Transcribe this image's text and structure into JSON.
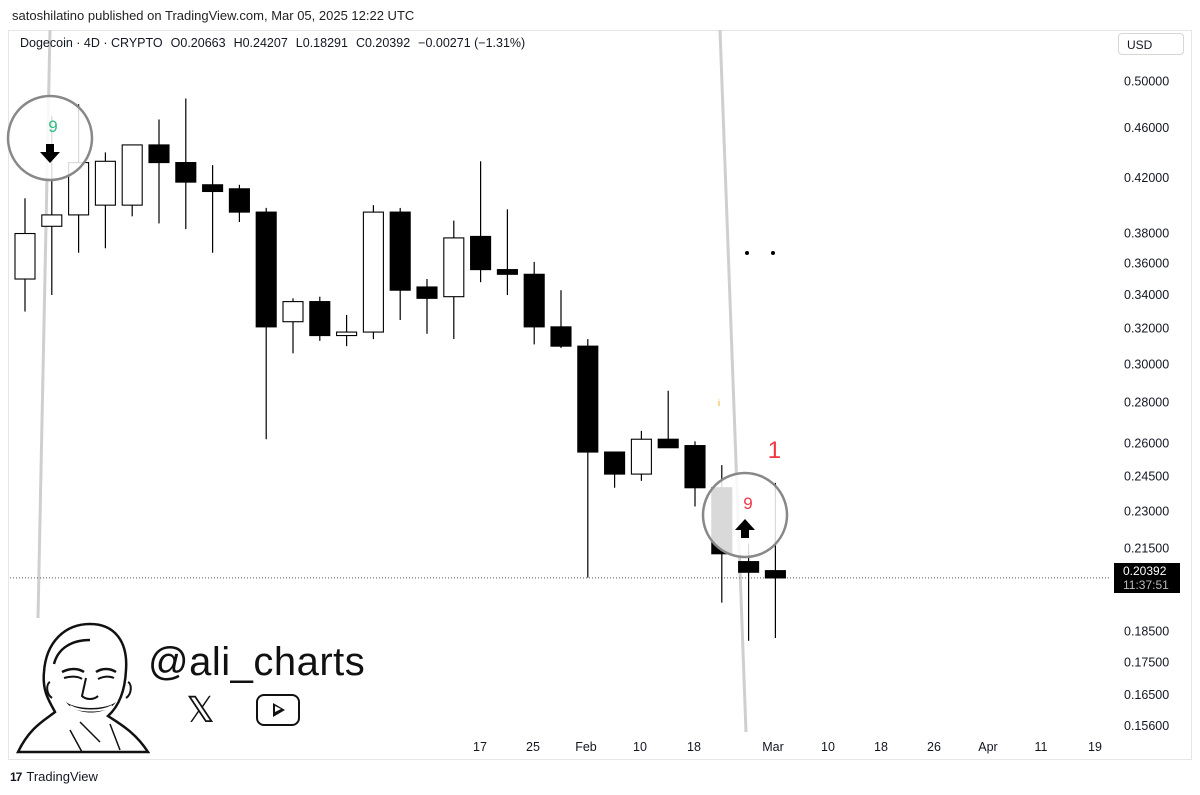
{
  "header": {
    "published": "satoshilatino published on TradingView.com, Mar 05, 2025 12:22 UTC"
  },
  "legend": {
    "symbol": "Dogecoin · 4D · CRYPTO",
    "open": "O0.20663",
    "high": "H0.24207",
    "low": "L0.18291",
    "close": "C0.20392",
    "change": "−0.00271 (−1.31%)"
  },
  "currency_button": "USD",
  "last_price": {
    "value": "0.20392",
    "countdown": "11:37:51"
  },
  "watermark": {
    "handle": "@ali_charts",
    "x_logo": "𝕏"
  },
  "footer": {
    "brand": "TradingView",
    "logo_icon": "tradingview-logo-icon"
  },
  "colors": {
    "up_body": "#ffffff",
    "down_body": "#000000",
    "wick": "#000000",
    "signal_green": "#2ebd85",
    "signal_red": "#f23645",
    "trendline": "#cfcfcf"
  },
  "chart_data": {
    "type": "candlestick",
    "symbol": "Dogecoin",
    "interval": "4D",
    "y_axis": {
      "scale": "log",
      "ticks": [
        "0.50000",
        "0.46000",
        "0.42000",
        "0.38000",
        "0.36000",
        "0.34000",
        "0.32000",
        "0.30000",
        "0.28000",
        "0.26000",
        "0.24500",
        "0.23000",
        "0.21500",
        "0.18500",
        "0.17500",
        "0.16500",
        "0.15600"
      ],
      "ylim": [
        0.1535,
        0.52
      ]
    },
    "x_axis": {
      "tick_labels": [
        "17",
        "25",
        "Feb",
        "10",
        "18",
        "Mar",
        "10",
        "18",
        "26",
        "Apr",
        "11",
        "19"
      ]
    },
    "candles": [
      {
        "o": 0.35,
        "h": 0.405,
        "l": 0.33,
        "c": 0.38
      },
      {
        "o": 0.385,
        "h": 0.47,
        "l": 0.34,
        "c": 0.393
      },
      {
        "o": 0.393,
        "h": 0.48,
        "l": 0.367,
        "c": 0.432
      },
      {
        "o": 0.4,
        "h": 0.44,
        "l": 0.37,
        "c": 0.433
      },
      {
        "o": 0.4,
        "h": 0.445,
        "l": 0.392,
        "c": 0.446
      },
      {
        "o": 0.446,
        "h": 0.467,
        "l": 0.387,
        "c": 0.432
      },
      {
        "o": 0.432,
        "h": 0.485,
        "l": 0.383,
        "c": 0.417
      },
      {
        "o": 0.415,
        "h": 0.43,
        "l": 0.367,
        "c": 0.41
      },
      {
        "o": 0.412,
        "h": 0.415,
        "l": 0.388,
        "c": 0.395
      },
      {
        "o": 0.395,
        "h": 0.398,
        "l": 0.262,
        "c": 0.321
      },
      {
        "o": 0.324,
        "h": 0.338,
        "l": 0.306,
        "c": 0.336
      },
      {
        "o": 0.336,
        "h": 0.339,
        "l": 0.313,
        "c": 0.316
      },
      {
        "o": 0.316,
        "h": 0.328,
        "l": 0.31,
        "c": 0.318
      },
      {
        "o": 0.318,
        "h": 0.4,
        "l": 0.314,
        "c": 0.395
      },
      {
        "o": 0.395,
        "h": 0.398,
        "l": 0.325,
        "c": 0.343
      },
      {
        "o": 0.345,
        "h": 0.35,
        "l": 0.317,
        "c": 0.338
      },
      {
        "o": 0.339,
        "h": 0.389,
        "l": 0.314,
        "c": 0.377
      },
      {
        "o": 0.378,
        "h": 0.433,
        "l": 0.348,
        "c": 0.356
      },
      {
        "o": 0.356,
        "h": 0.397,
        "l": 0.34,
        "c": 0.353
      },
      {
        "o": 0.353,
        "h": 0.361,
        "l": 0.311,
        "c": 0.321
      },
      {
        "o": 0.321,
        "h": 0.343,
        "l": 0.309,
        "c": 0.31
      },
      {
        "o": 0.31,
        "h": 0.314,
        "l": 0.204,
        "c": 0.256
      },
      {
        "o": 0.256,
        "h": 0.256,
        "l": 0.24,
        "c": 0.246
      },
      {
        "o": 0.246,
        "h": 0.266,
        "l": 0.243,
        "c": 0.262
      },
      {
        "o": 0.262,
        "h": 0.286,
        "l": 0.258,
        "c": 0.258
      },
      {
        "o": 0.259,
        "h": 0.261,
        "l": 0.232,
        "c": 0.24
      },
      {
        "o": 0.24,
        "h": 0.25,
        "l": 0.195,
        "c": 0.213
      },
      {
        "o": 0.21,
        "h": 0.217,
        "l": 0.182,
        "c": 0.206
      },
      {
        "o": 0.2066,
        "h": 0.2421,
        "l": 0.1829,
        "c": 0.2039
      }
    ],
    "last_price": 0.20392,
    "annotations": [
      {
        "label": "9",
        "color": "#2ebd85",
        "arrow": "down",
        "at_candle": 1
      },
      {
        "label": "9",
        "color": "#f23645",
        "arrow": "up",
        "at_candle": 27
      },
      {
        "label": "1",
        "color": "#f23645",
        "at_candle": 28
      }
    ]
  }
}
